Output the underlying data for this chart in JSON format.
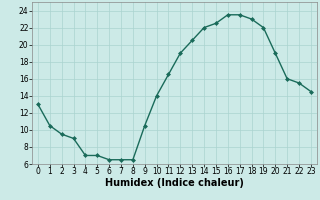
{
  "hours": [
    0,
    1,
    2,
    3,
    4,
    5,
    6,
    7,
    8,
    9,
    10,
    11,
    12,
    13,
    14,
    15,
    16,
    17,
    18,
    19,
    20,
    21,
    22,
    23
  ],
  "values": [
    13,
    10.5,
    9.5,
    9,
    7,
    7,
    6.5,
    6.5,
    6.5,
    10.5,
    14,
    16.5,
    19,
    20.5,
    22,
    22.5,
    23.5,
    23.5,
    23,
    22,
    19,
    16,
    15.5,
    14.5
  ],
  "line_color": "#1a6b5a",
  "marker": "D",
  "marker_size": 2.0,
  "bg_color": "#cceae7",
  "grid_color": "#aad4d0",
  "xlabel": "Humidex (Indice chaleur)",
  "xlim": [
    -0.5,
    23.5
  ],
  "ylim": [
    6,
    25
  ],
  "yticks": [
    6,
    8,
    10,
    12,
    14,
    16,
    18,
    20,
    22,
    24
  ],
  "xticks": [
    0,
    1,
    2,
    3,
    4,
    5,
    6,
    7,
    8,
    9,
    10,
    11,
    12,
    13,
    14,
    15,
    16,
    17,
    18,
    19,
    20,
    21,
    22,
    23
  ],
  "xlabel_fontsize": 7,
  "tick_fontsize": 5.5,
  "line_width": 1.0
}
